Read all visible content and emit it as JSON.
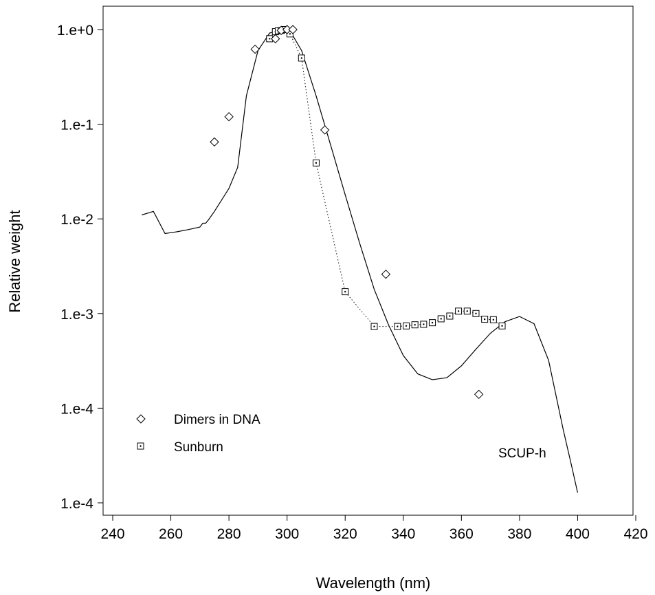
{
  "chart_data": {
    "type": "line",
    "title": "",
    "xlabel": "Wavelength (nm)",
    "ylabel": "Relative weight",
    "xlim": [
      240,
      420
    ],
    "x_scale": "linear",
    "y_scale": "log",
    "x_ticks": [
      "240",
      "260",
      "280",
      "300",
      "320",
      "340",
      "360",
      "380",
      "400",
      "420"
    ],
    "y_ticks": [
      "1.e+0",
      "1.e-1",
      "1.e-2",
      "1.e-3",
      "1.e-4",
      "1.e-4"
    ],
    "grid": false,
    "legend_position": "bottom-left",
    "annotations": [
      {
        "text": "SCUP-h",
        "near_x": 400
      }
    ],
    "series": [
      {
        "name": "Dimers in DNA",
        "style": "scatter",
        "marker": "diamond",
        "x": [
          275,
          280,
          289,
          296,
          298,
          300,
          302,
          313,
          334,
          366
        ],
        "y": [
          0.065,
          0.12,
          0.62,
          0.8,
          0.98,
          1.0,
          1.0,
          0.087,
          0.0026,
          0.00014
        ]
      },
      {
        "name": "Sunburn",
        "style": "line+markers",
        "line": "dotted",
        "marker": "square-dot",
        "x": [
          294,
          296,
          297,
          298,
          299,
          301,
          305,
          310,
          320,
          330,
          338,
          341,
          344,
          347,
          350,
          353,
          356,
          359,
          362,
          365,
          368,
          371,
          374
        ],
        "y": [
          0.8,
          0.95,
          0.97,
          0.98,
          1.0,
          0.9,
          0.5,
          0.039,
          0.0017,
          0.00073,
          0.00073,
          0.00074,
          0.00076,
          0.00077,
          0.0008,
          0.00088,
          0.00094,
          0.00106,
          0.00106,
          0.001,
          0.00087,
          0.00086,
          0.00074
        ]
      },
      {
        "name": "SCUP-h",
        "style": "line",
        "line": "solid",
        "x": [
          250,
          254,
          258,
          262,
          266,
          270,
          271,
          272,
          273,
          275,
          280,
          283,
          286,
          290,
          294,
          298,
          301,
          305,
          310,
          315,
          320,
          325,
          330,
          335,
          340,
          345,
          350,
          355,
          360,
          365,
          370,
          375,
          380,
          385,
          390,
          395,
          398,
          400
        ],
        "y": [
          0.011,
          0.012,
          0.007,
          0.0073,
          0.0077,
          0.0082,
          0.009,
          0.009,
          0.0098,
          0.012,
          0.021,
          0.035,
          0.2,
          0.6,
          0.92,
          0.99,
          0.97,
          0.6,
          0.2,
          0.06,
          0.018,
          0.0055,
          0.0018,
          0.00075,
          0.00036,
          0.00023,
          0.0002,
          0.00021,
          0.00028,
          0.00042,
          0.00062,
          0.00082,
          0.00093,
          0.00078,
          0.00032,
          6e-05,
          2.4e-05,
          1.28e-05
        ]
      }
    ]
  }
}
